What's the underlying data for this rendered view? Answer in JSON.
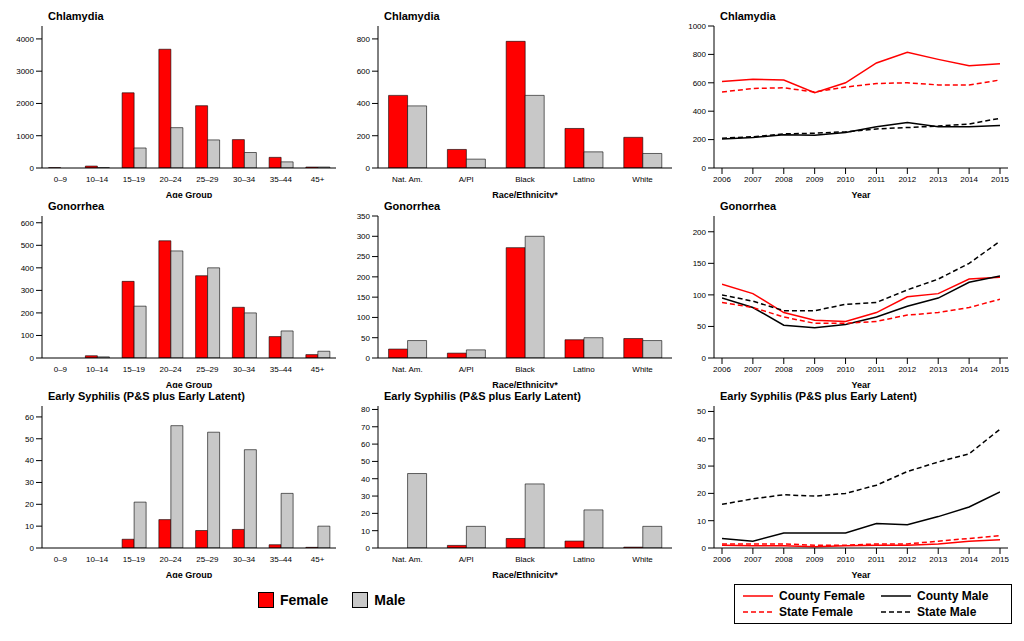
{
  "chart_data": [
    {
      "type": "bar",
      "title": "Chlamydia",
      "x_label": "Age Group",
      "categories": [
        "0–9",
        "10–14",
        "15–19",
        "20–24",
        "25–29",
        "30–34",
        "35–44",
        "45+"
      ],
      "series": [
        {
          "name": "Female",
          "color": "#ff0000",
          "values": [
            10,
            60,
            2330,
            3680,
            1930,
            880,
            330,
            30
          ]
        },
        {
          "name": "Male",
          "color": "#c8c8c8",
          "values": [
            0,
            10,
            620,
            1250,
            870,
            480,
            190,
            30
          ]
        }
      ],
      "ylim": [
        0,
        4400
      ],
      "yticks": [
        0,
        1000,
        2000,
        3000,
        4000
      ],
      "legend": "bottom"
    },
    {
      "type": "bar",
      "title": "Chlamydia",
      "x_label": "Race/Ethnicity*",
      "categories": [
        "Nat. Am.",
        "A/PI",
        "Black",
        "Latino",
        "White"
      ],
      "series": [
        {
          "name": "Female",
          "color": "#ff0000",
          "values": [
            450,
            115,
            785,
            245,
            190
          ]
        },
        {
          "name": "Male",
          "color": "#c8c8c8",
          "values": [
            385,
            55,
            450,
            100,
            90
          ]
        }
      ],
      "ylim": [
        0,
        880
      ],
      "yticks": [
        0,
        200,
        400,
        600,
        800
      ],
      "legend": "bottom"
    },
    {
      "type": "line",
      "title": "Chlamydia",
      "x_label": "Year",
      "x": [
        2006,
        2007,
        2008,
        2009,
        2010,
        2011,
        2012,
        2013,
        2014,
        2015
      ],
      "xlim": [
        2006,
        2015
      ],
      "xticks": [
        2006,
        2007,
        2008,
        2009,
        2010,
        2011,
        2012,
        2013,
        2014,
        2015
      ],
      "series": [
        {
          "name": "County Female",
          "color": "#ff0000",
          "line_style": "solid",
          "values": [
            610,
            625,
            620,
            530,
            600,
            740,
            815,
            765,
            720,
            735
          ]
        },
        {
          "name": "County Male",
          "color": "#000000",
          "line_style": "solid",
          "values": [
            205,
            215,
            235,
            230,
            250,
            290,
            320,
            290,
            290,
            300
          ]
        },
        {
          "name": "State Female",
          "color": "#ff0000",
          "line_style": "dashed",
          "values": [
            535,
            560,
            565,
            535,
            570,
            595,
            600,
            585,
            585,
            620
          ]
        },
        {
          "name": "State Male",
          "color": "#000000",
          "line_style": "dashed",
          "values": [
            210,
            220,
            240,
            245,
            255,
            275,
            285,
            295,
            310,
            350
          ]
        }
      ],
      "ylim": [
        0,
        1000
      ],
      "yticks": [
        0,
        200,
        400,
        600,
        800,
        1000
      ],
      "legend": "bottom"
    },
    {
      "type": "bar",
      "title": "Gonorrhea",
      "x_label": "Age Group",
      "categories": [
        "0–9",
        "10–14",
        "15–19",
        "20–24",
        "25–29",
        "30–34",
        "35–44",
        "45+"
      ],
      "series": [
        {
          "name": "Female",
          "color": "#ff0000",
          "values": [
            0,
            10,
            340,
            520,
            365,
            225,
            95,
            15
          ]
        },
        {
          "name": "Male",
          "color": "#c8c8c8",
          "values": [
            0,
            5,
            230,
            475,
            400,
            200,
            120,
            30
          ]
        }
      ],
      "ylim": [
        0,
        630
      ],
      "yticks": [
        0,
        100,
        200,
        300,
        400,
        500,
        600
      ],
      "legend": "bottom"
    },
    {
      "type": "bar",
      "title": "Gonorrhea",
      "x_label": "Race/Ethnicity*",
      "categories": [
        "Nat. Am.",
        "A/PI",
        "Black",
        "Latino",
        "White"
      ],
      "series": [
        {
          "name": "Female",
          "color": "#ff0000",
          "values": [
            22,
            12,
            272,
            45,
            48
          ]
        },
        {
          "name": "Male",
          "color": "#c8c8c8",
          "values": [
            43,
            20,
            300,
            50,
            43
          ]
        }
      ],
      "ylim": [
        0,
        350
      ],
      "yticks": [
        0,
        50,
        100,
        150,
        200,
        250,
        300,
        350
      ],
      "legend": "bottom"
    },
    {
      "type": "line",
      "title": "Gonorrhea",
      "x_label": "Year",
      "x": [
        2006,
        2007,
        2008,
        2009,
        2010,
        2011,
        2012,
        2013,
        2014,
        2015
      ],
      "xlim": [
        2006,
        2015
      ],
      "xticks": [
        2006,
        2007,
        2008,
        2009,
        2010,
        2011,
        2012,
        2013,
        2014,
        2015
      ],
      "series": [
        {
          "name": "County Female",
          "color": "#ff0000",
          "line_style": "solid",
          "values": [
            117,
            102,
            72,
            60,
            58,
            72,
            97,
            102,
            125,
            128
          ]
        },
        {
          "name": "County Male",
          "color": "#000000",
          "line_style": "solid",
          "values": [
            95,
            80,
            52,
            48,
            53,
            65,
            82,
            95,
            120,
            130
          ]
        },
        {
          "name": "State Female",
          "color": "#ff0000",
          "line_style": "dashed",
          "values": [
            88,
            80,
            65,
            55,
            55,
            58,
            68,
            72,
            80,
            93
          ]
        },
        {
          "name": "State Male",
          "color": "#000000",
          "line_style": "dashed",
          "values": [
            100,
            90,
            75,
            75,
            85,
            88,
            108,
            125,
            150,
            185
          ]
        }
      ],
      "ylim": [
        0,
        225
      ],
      "yticks": [
        0,
        50,
        100,
        150,
        200
      ],
      "legend": "bottom"
    },
    {
      "type": "bar",
      "title": "Early Syphilis (P&S plus Early Latent)",
      "x_label": "Age Group",
      "categories": [
        "0–9",
        "10–14",
        "15–19",
        "20–24",
        "25–29",
        "30–34",
        "35–44",
        "45+"
      ],
      "series": [
        {
          "name": "Female",
          "color": "#ff0000",
          "values": [
            0,
            0,
            4,
            13,
            8,
            8.5,
            1.5,
            0.3
          ]
        },
        {
          "name": "Male",
          "color": "#c8c8c8",
          "values": [
            0,
            0,
            21,
            56,
            53,
            45,
            25,
            10
          ]
        }
      ],
      "ylim": [
        0,
        65
      ],
      "yticks": [
        0,
        10,
        20,
        30,
        40,
        50,
        60
      ],
      "legend": "bottom"
    },
    {
      "type": "bar",
      "title": "Early Syphilis (P&S plus Early Latent)",
      "x_label": "Race/Ethnicity*",
      "categories": [
        "Nat. Am.",
        "A/PI",
        "Black",
        "Latino",
        "White"
      ],
      "series": [
        {
          "name": "Female",
          "color": "#ff0000",
          "values": [
            0,
            1.5,
            5.5,
            4,
            0.5
          ]
        },
        {
          "name": "Male",
          "color": "#c8c8c8",
          "values": [
            43,
            12.5,
            37,
            22,
            12.5
          ]
        }
      ],
      "ylim": [
        0,
        82
      ],
      "yticks": [
        0,
        10,
        20,
        30,
        40,
        50,
        60,
        70,
        80
      ],
      "legend": "bottom"
    },
    {
      "type": "line",
      "title": "Early Syphilis (P&S plus Early Latent)",
      "x_label": "Year",
      "x": [
        2006,
        2007,
        2008,
        2009,
        2010,
        2011,
        2012,
        2013,
        2014,
        2015
      ],
      "xlim": [
        2006,
        2015
      ],
      "xticks": [
        2006,
        2007,
        2008,
        2009,
        2010,
        2011,
        2012,
        2013,
        2014,
        2015
      ],
      "series": [
        {
          "name": "County Female",
          "color": "#ff0000",
          "line_style": "solid",
          "values": [
            1,
            0.8,
            0.8,
            0.5,
            0.8,
            1,
            1,
            1.5,
            2.5,
            3
          ]
        },
        {
          "name": "County Male",
          "color": "#000000",
          "line_style": "solid",
          "values": [
            3.5,
            2.5,
            5.5,
            5.5,
            5.5,
            9,
            8.5,
            11.5,
            15,
            20.5
          ]
        },
        {
          "name": "State Female",
          "color": "#ff0000",
          "line_style": "dashed",
          "values": [
            1.5,
            1.5,
            1.5,
            1,
            1,
            1.5,
            1.5,
            2.5,
            3.5,
            4.5
          ]
        },
        {
          "name": "State Male",
          "color": "#000000",
          "line_style": "dashed",
          "values": [
            16,
            18,
            19.5,
            19,
            20,
            23,
            28,
            31.5,
            34.5,
            43.5
          ]
        }
      ],
      "ylim": [
        0,
        52
      ],
      "yticks": [
        0,
        10,
        20,
        30,
        40,
        50
      ],
      "legend": "bottom"
    }
  ]
}
